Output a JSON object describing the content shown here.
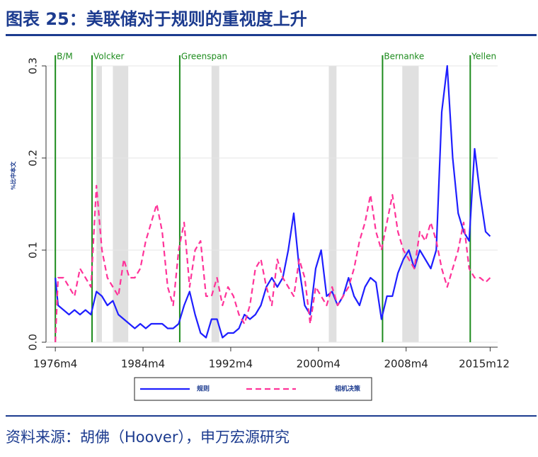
{
  "chart_data": {
    "type": "line",
    "title": "图表 25：美联储对于规则的重视度上升",
    "ylabel": "%比中本文",
    "x": [
      1976.25,
      1976.5,
      1977,
      1977.5,
      1978,
      1978.5,
      1979,
      1979.5,
      1980,
      1980.5,
      1981,
      1981.5,
      1982,
      1982.5,
      1983,
      1983.5,
      1984,
      1984.5,
      1985,
      1985.5,
      1986,
      1986.5,
      1987,
      1987.5,
      1988,
      1988.5,
      1989,
      1989.5,
      1990,
      1990.5,
      1991,
      1991.5,
      1992,
      1992.5,
      1993,
      1993.5,
      1994,
      1994.5,
      1995,
      1995.5,
      1996,
      1996.5,
      1997,
      1997.5,
      1998,
      1998.5,
      1999,
      1999.5,
      2000,
      2000.5,
      2001,
      2001.5,
      2002,
      2002.5,
      2003,
      2003.5,
      2004,
      2004.5,
      2005,
      2005.5,
      2006,
      2006.5,
      2007,
      2007.5,
      2008,
      2008.5,
      2009,
      2009.5,
      2010,
      2010.5,
      2011,
      2011.5,
      2012,
      2012.5,
      2013,
      2013.5,
      2014,
      2014.5,
      2015,
      2015.5,
      2015.917
    ],
    "series": [
      {
        "name": "规则",
        "color": "#1f1fff",
        "dash": false,
        "values": [
          0.07,
          0.04,
          0.035,
          0.03,
          0.035,
          0.03,
          0.035,
          0.03,
          0.055,
          0.05,
          0.04,
          0.045,
          0.03,
          0.025,
          0.02,
          0.015,
          0.02,
          0.015,
          0.02,
          0.02,
          0.02,
          0.015,
          0.015,
          0.02,
          0.04,
          0.055,
          0.03,
          0.01,
          0.005,
          0.025,
          0.025,
          0.005,
          0.01,
          0.01,
          0.015,
          0.03,
          0.025,
          0.03,
          0.04,
          0.06,
          0.07,
          0.06,
          0.07,
          0.1,
          0.14,
          0.08,
          0.04,
          0.03,
          0.08,
          0.1,
          0.05,
          0.055,
          0.04,
          0.05,
          0.07,
          0.05,
          0.04,
          0.06,
          0.07,
          0.065,
          0.025,
          0.05,
          0.05,
          0.075,
          0.09,
          0.1,
          0.08,
          0.1,
          0.09,
          0.08,
          0.1,
          0.25,
          0.3,
          0.2,
          0.14,
          0.12,
          0.11,
          0.21,
          0.16,
          0.12,
          0.115
        ]
      },
      {
        "name": "相机决策",
        "color": "#ff3399",
        "dash": true,
        "values": [
          0.0,
          0.07,
          0.07,
          0.06,
          0.05,
          0.08,
          0.07,
          0.06,
          0.17,
          0.1,
          0.07,
          0.06,
          0.05,
          0.09,
          0.07,
          0.07,
          0.08,
          0.11,
          0.13,
          0.15,
          0.12,
          0.06,
          0.04,
          0.1,
          0.13,
          0.06,
          0.1,
          0.11,
          0.05,
          0.05,
          0.07,
          0.04,
          0.06,
          0.05,
          0.03,
          0.02,
          0.04,
          0.08,
          0.09,
          0.06,
          0.04,
          0.09,
          0.07,
          0.06,
          0.05,
          0.09,
          0.07,
          0.02,
          0.06,
          0.05,
          0.04,
          0.06,
          0.04,
          0.05,
          0.06,
          0.08,
          0.11,
          0.13,
          0.16,
          0.12,
          0.1,
          0.13,
          0.16,
          0.12,
          0.1,
          0.09,
          0.08,
          0.12,
          0.11,
          0.13,
          0.11,
          0.08,
          0.06,
          0.08,
          0.1,
          0.13,
          0.08,
          0.07,
          0.07,
          0.065,
          0.07
        ]
      }
    ],
    "xlim": [
      1975.4,
      2016.6
    ],
    "xticks": [
      {
        "value": 1976.25,
        "label": "1976m4"
      },
      {
        "value": 1984.25,
        "label": "1984m4"
      },
      {
        "value": 1992.25,
        "label": "1992m4"
      },
      {
        "value": 2000.25,
        "label": "2000m4"
      },
      {
        "value": 2008.25,
        "label": "2008m4"
      },
      {
        "value": 2015.917,
        "label": "2015m12"
      }
    ],
    "ylim": [
      0,
      0.3
    ],
    "yticks": [
      {
        "value": 0,
        "label": "0.0"
      },
      0.1,
      0.2,
      0.3
    ],
    "grid": true,
    "annotations": [
      {
        "label": "B/M",
        "x": 1976.25
      },
      {
        "label": "Volcker",
        "x": 1979.6
      },
      {
        "label": "Greenspan",
        "x": 1987.6
      },
      {
        "label": "Bernanke",
        "x": 2006.1
      },
      {
        "label": "Yellen",
        "x": 2014.1
      }
    ],
    "annotation_color": "#1e8c1e",
    "shaded_periods": [
      [
        1980.0,
        1980.5
      ],
      [
        1981.5,
        1982.9
      ],
      [
        1990.5,
        1991.2
      ],
      [
        2001.2,
        2001.9
      ],
      [
        2007.9,
        2009.4
      ]
    ],
    "shade_color": "#e0e0e0"
  },
  "source": "资料来源：胡佛（Hoover），申万宏源研究"
}
